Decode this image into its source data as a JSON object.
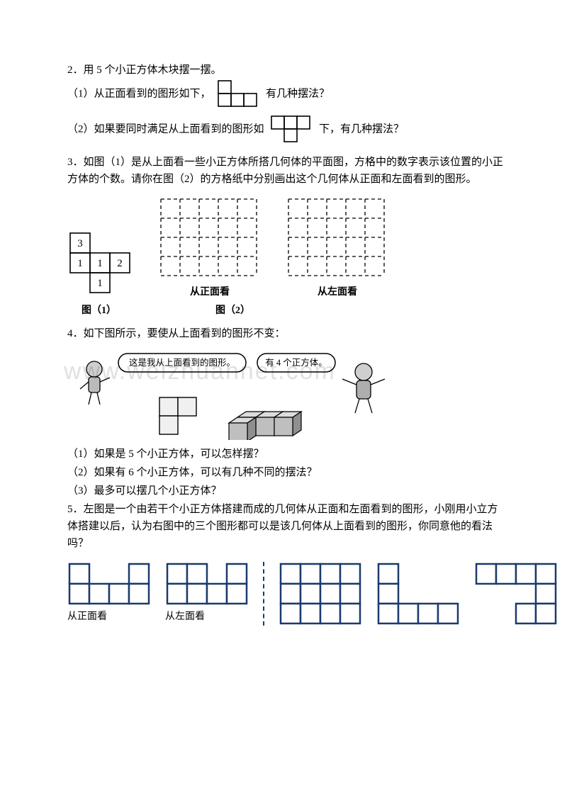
{
  "q2": {
    "title": "2．用 5 个小正方体木块摆一摆。",
    "p1a": "（1）从正面看到的图形如下，",
    "p1b": "有几种摆法？",
    "p2a": "（2）如果要同时满足从上面看到的图形如",
    "p2b": "下，有几种摆法？",
    "shape1": {
      "cell": 18,
      "stroke": "#000",
      "stroke_w": 1.5
    },
    "shape2": {
      "cell": 18,
      "stroke": "#000",
      "stroke_w": 1.5
    }
  },
  "q3": {
    "title": "3．如图（1）是从上面看一些小正方体所搭几何体的平面图，方格中的数字表示该位置的小正方体的个数。请你在图（2）的方格纸中分别画出这个几何体从正面和左面看到的图形。",
    "fig1_cells": [
      [
        "3",
        ""
      ],
      [
        "1",
        "1",
        "2"
      ],
      [
        "",
        "1",
        ""
      ]
    ],
    "cell": 28,
    "grid": {
      "rows": 4,
      "cols": 5,
      "cell": 27,
      "stroke": "#000"
    },
    "label_front": "从正面看",
    "label_left": "从左面看",
    "cap1": "图（1）",
    "cap2": "图（2）"
  },
  "q4": {
    "title": "4．如下图所示，要使从上面看到的图形不变：",
    "bubble1": "这是我从上面看到的图形。",
    "bubble2": "有 4 个正方体。",
    "p1": "（1）如果是 5 个小正方体，可以怎样摆？",
    "p2": "（2）如果有 6 个小正方体，可以有几种不同的摆法？",
    "p3": "（3）最多可以摆几个小正方体？",
    "colors": {
      "cube_light": "#e8e8e8",
      "cube_dark": "#8a8a8a",
      "stroke": "#000"
    }
  },
  "q5": {
    "title": "5．左图是一个由若干个小正方体搭建而成的几何体从正面和左面看到的图形，小刚用小立方体搭建以后，认为右图中的三个图形都可以是该几何体从上面看到的图形，你同意他的看法吗？",
    "label_front": "从正面看",
    "label_left": "从左面看",
    "cell": 28,
    "stroke": "#1a3a6e",
    "stroke_w": 2.5,
    "cells_front": [
      [
        1,
        0,
        0,
        1
      ],
      [
        1,
        1,
        1,
        1
      ]
    ],
    "cells_left": [
      [
        1,
        1,
        0,
        1
      ],
      [
        1,
        1,
        1,
        1
      ]
    ],
    "cells_r1": [
      [
        1,
        1,
        1,
        1
      ],
      [
        1,
        1,
        1,
        1
      ],
      [
        1,
        1,
        1,
        1
      ]
    ],
    "cells_r2": [
      [
        1,
        0,
        0,
        0
      ],
      [
        1,
        0,
        0,
        0
      ],
      [
        1,
        1,
        1,
        1
      ]
    ],
    "cells_r3": [
      [
        1,
        1,
        1,
        1
      ],
      [
        0,
        0,
        0,
        1
      ],
      [
        0,
        0,
        1,
        1
      ]
    ]
  },
  "watermark": "www.weizhuannet.com"
}
